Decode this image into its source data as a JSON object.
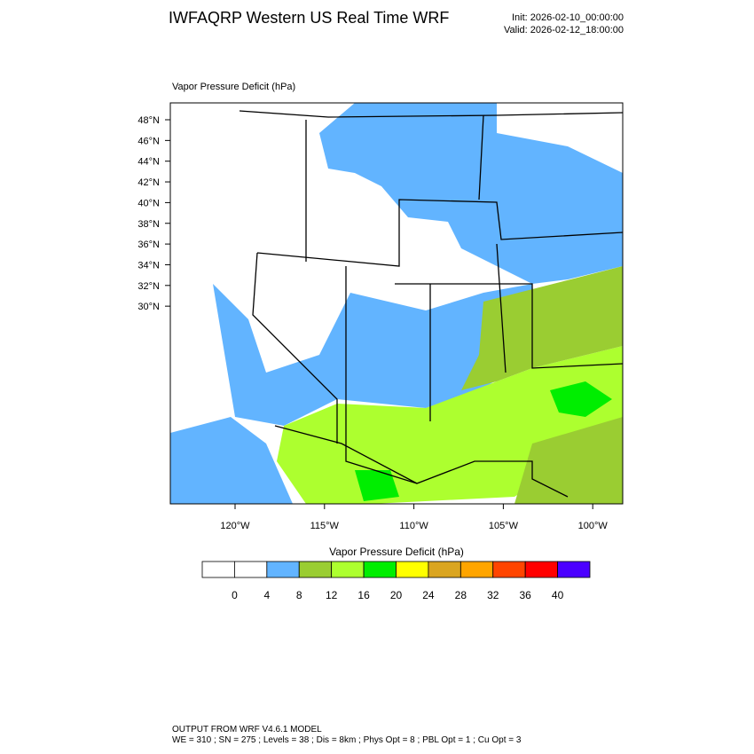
{
  "header": {
    "title": "IWFAQRP Western US Real Time WRF",
    "init": "Init: 2026-02-10_00:00:00",
    "valid": "Valid: 2026-02-12_18:00:00"
  },
  "map": {
    "field_label": "Vapor Pressure Deficit   (hPa)",
    "lat_labels": [
      "48°N",
      "46°N",
      "44°N",
      "42°N",
      "40°N",
      "38°N",
      "36°N",
      "34°N",
      "32°N",
      "30°N"
    ],
    "lon_labels": [
      "120°W",
      "115°W",
      "110°W",
      "105°W",
      "100°W"
    ]
  },
  "colorbar": {
    "title": "Vapor Pressure Deficit  (hPa)",
    "levels": [
      0,
      4,
      8,
      12,
      16,
      20,
      24,
      28,
      32,
      36,
      40
    ],
    "colors": [
      "#ffffff",
      "#ffffff",
      "#62b4ff",
      "#9acd32",
      "#adff2f",
      "#00ee00",
      "#ffff00",
      "#daa520",
      "#ffa500",
      "#ff4500",
      "#ff0000",
      "#4b00ff"
    ]
  },
  "footer": {
    "line1": "OUTPUT FROM WRF V4.6.1 MODEL",
    "line2": "WE = 310 ; SN = 275 ; Levels = 38 ; Dis = 8km ; Phys Opt = 8 ; PBL Opt = 1 ; Cu Opt = 3"
  }
}
